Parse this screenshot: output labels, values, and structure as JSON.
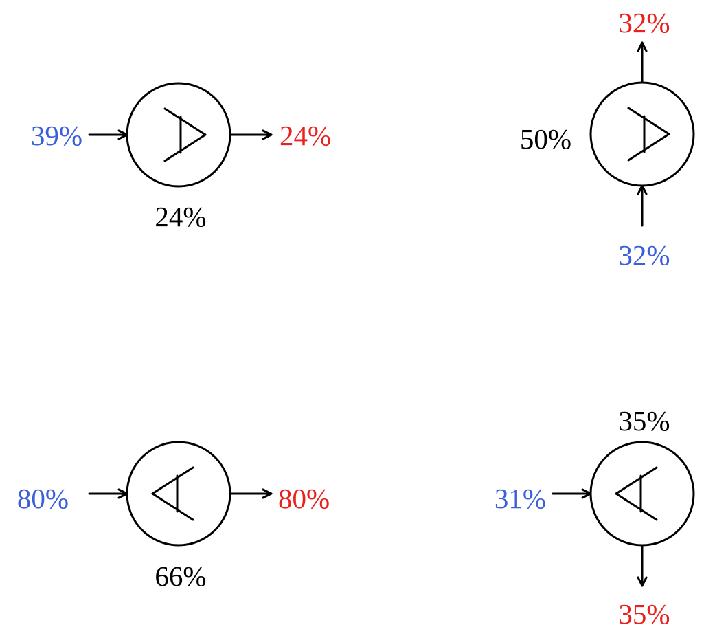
{
  "colors": {
    "input": "#3a5fd9",
    "output": "#e8211d",
    "gain": "#000000",
    "line": "#000000"
  },
  "icon": "amplifier-icon",
  "blocks": [
    {
      "id": "top-left",
      "symbol_direction": "right",
      "input_label": "39%",
      "output_label": "24%",
      "gain_label": "24%"
    },
    {
      "id": "top-right",
      "symbol_direction": "right",
      "input_label": "32%",
      "output_label": "32%",
      "gain_label": "50%"
    },
    {
      "id": "bottom-left",
      "symbol_direction": "left",
      "input_label": "80%",
      "output_label": "80%",
      "gain_label": "66%"
    },
    {
      "id": "bottom-right",
      "symbol_direction": "left",
      "input_label": "31%",
      "output_label": "35%",
      "gain_label": "35%"
    }
  ]
}
